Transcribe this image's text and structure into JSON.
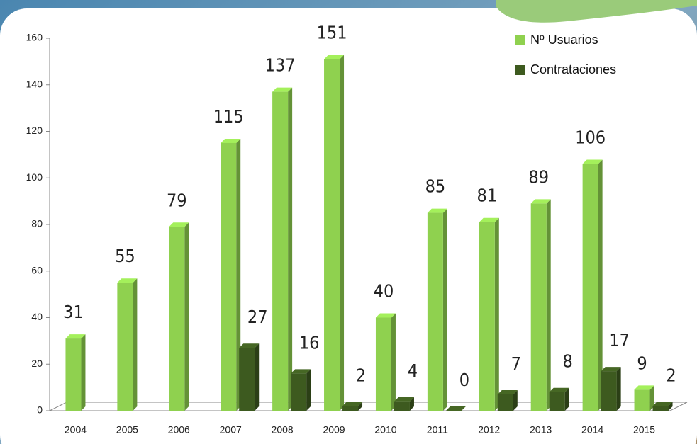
{
  "chart_data": {
    "type": "bar",
    "categories": [
      "2004",
      "2005",
      "2006",
      "2007",
      "2008",
      "2009",
      "2010",
      "2011",
      "2012",
      "2013",
      "2014",
      "2015"
    ],
    "series": [
      {
        "name": "Nº Usuarios",
        "color": "#8fd14f",
        "values": [
          31,
          55,
          79,
          115,
          137,
          151,
          40,
          85,
          81,
          89,
          106,
          9
        ]
      },
      {
        "name": "Contrataciones",
        "color": "#3d5a1f",
        "values": [
          null,
          null,
          null,
          27,
          16,
          2,
          4,
          0,
          7,
          8,
          17,
          2
        ]
      }
    ],
    "ylim": [
      0,
      160
    ],
    "yticks": [
      0,
      20,
      40,
      60,
      80,
      100,
      120,
      140,
      160
    ],
    "legend": "top-right"
  }
}
